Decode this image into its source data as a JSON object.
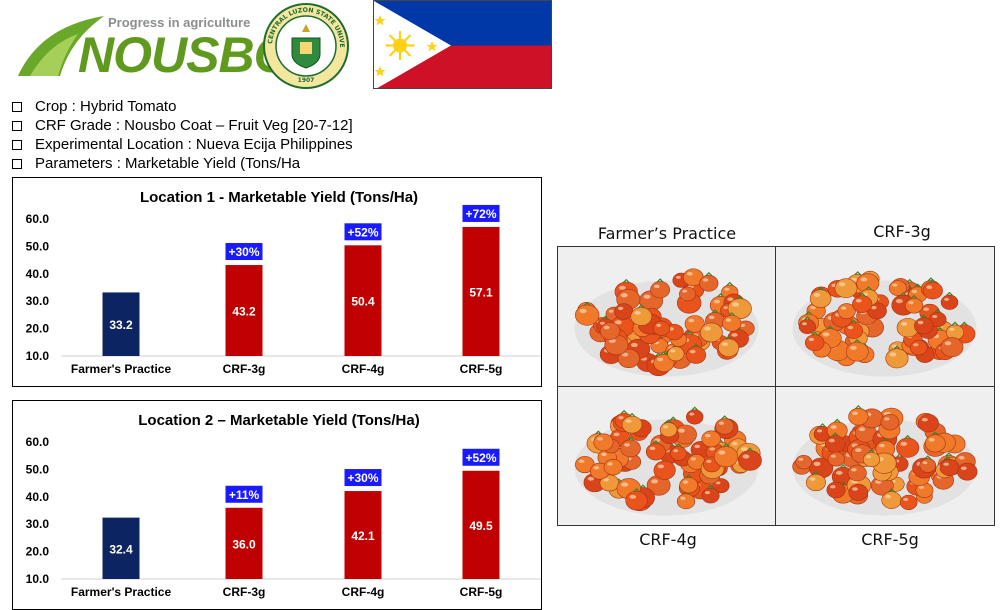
{
  "header": {
    "tagline": "Progress in agriculture",
    "brand": "NOUSBO",
    "seal_text": "CENTRAL LUZON STATE UNIVERSITY",
    "seal_year": "1907",
    "flag_colors": {
      "blue": "#0038a8",
      "red": "#ce1126",
      "white": "#ffffff",
      "sun": "#fcd116"
    }
  },
  "bullets": [
    "Crop : Hybrid Tomato",
    "CRF Grade : Nousbo Coat – Fruit Veg [20-7-12]",
    "Experimental Location : Nueva Ecija Philippines",
    "Parameters : Marketable Yield (Tons/Ha"
  ],
  "colors": {
    "farmer_bar": "#0c2461",
    "crf_bar": "#c00000",
    "badge": "#1a1aff",
    "bar_label": "#ffffff"
  },
  "chart_data": [
    {
      "type": "bar",
      "title": "Location 1  - Marketable Yield (Tons/Ha)",
      "categories": [
        "Farmer's Practice",
        "CRF-3g",
        "CRF-4g",
        "CRF-5g"
      ],
      "values": [
        33.2,
        43.2,
        50.4,
        57.1
      ],
      "value_labels": [
        "33.2",
        "43.2",
        "50.4",
        "57.1"
      ],
      "increase_labels": [
        "",
        "+30%",
        "+52%",
        "+72%"
      ],
      "yticks": [
        "10.0",
        "20.0",
        "30.0",
        "40.0",
        "50.0",
        "60.0"
      ],
      "ylim": [
        10,
        60
      ],
      "grid": false,
      "legend": "none"
    },
    {
      "type": "bar",
      "title": "Location 2 – Marketable Yield (Tons/Ha)",
      "categories": [
        "Farmer's Practice",
        "CRF-3g",
        "CRF-4g",
        "CRF-5g"
      ],
      "values": [
        32.4,
        36.0,
        42.1,
        49.5
      ],
      "value_labels": [
        "32.4",
        "36.0",
        "42.1",
        "49.5"
      ],
      "increase_labels": [
        "",
        "+11%",
        "+30%",
        "+52%"
      ],
      "yticks": [
        "10.0",
        "20.0",
        "30.0",
        "40.0",
        "50.0",
        "60.0"
      ],
      "ylim": [
        10,
        60
      ],
      "grid": false,
      "legend": "none"
    }
  ],
  "photos": {
    "labels": [
      "Farmer’s Practice",
      "CRF-3g",
      "CRF-4g",
      "CRF-5g"
    ],
    "background_color": "#efefef",
    "tomato_colors": [
      "#e8541c",
      "#f07a2a",
      "#d9441a",
      "#ee9a3a",
      "#e4662a"
    ]
  }
}
